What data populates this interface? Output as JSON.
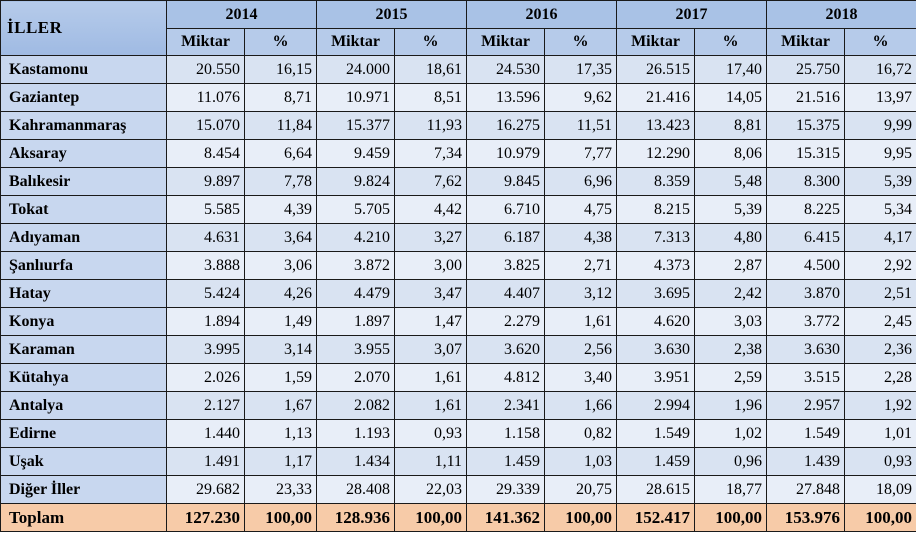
{
  "table": {
    "corner_label": "İLLER",
    "years": [
      "2014",
      "2015",
      "2016",
      "2017",
      "2018"
    ],
    "sub_headers": [
      "Miktar",
      "%"
    ],
    "rows": [
      {
        "name": "Kastamonu",
        "cells": [
          "20.550",
          "16,15",
          "24.000",
          "18,61",
          "24.530",
          "17,35",
          "26.515",
          "17,40",
          "25.750",
          "16,72"
        ]
      },
      {
        "name": "Gaziantep",
        "cells": [
          "11.076",
          "8,71",
          "10.971",
          "8,51",
          "13.596",
          "9,62",
          "21.416",
          "14,05",
          "21.516",
          "13,97"
        ]
      },
      {
        "name": "Kahramanmaraş",
        "cells": [
          "15.070",
          "11,84",
          "15.377",
          "11,93",
          "16.275",
          "11,51",
          "13.423",
          "8,81",
          "15.375",
          "9,99"
        ]
      },
      {
        "name": "Aksaray",
        "cells": [
          "8.454",
          "6,64",
          "9.459",
          "7,34",
          "10.979",
          "7,77",
          "12.290",
          "8,06",
          "15.315",
          "9,95"
        ]
      },
      {
        "name": "Balıkesir",
        "cells": [
          "9.897",
          "7,78",
          "9.824",
          "7,62",
          "9.845",
          "6,96",
          "8.359",
          "5,48",
          "8.300",
          "5,39"
        ]
      },
      {
        "name": "Tokat",
        "cells": [
          "5.585",
          "4,39",
          "5.705",
          "4,42",
          "6.710",
          "4,75",
          "8.215",
          "5,39",
          "8.225",
          "5,34"
        ]
      },
      {
        "name": "Adıyaman",
        "cells": [
          "4.631",
          "3,64",
          "4.210",
          "3,27",
          "6.187",
          "4,38",
          "7.313",
          "4,80",
          "6.415",
          "4,17"
        ]
      },
      {
        "name": "Şanlıurfa",
        "cells": [
          "3.888",
          "3,06",
          "3.872",
          "3,00",
          "3.825",
          "2,71",
          "4.373",
          "2,87",
          "4.500",
          "2,92"
        ]
      },
      {
        "name": "Hatay",
        "cells": [
          "5.424",
          "4,26",
          "4.479",
          "3,47",
          "4.407",
          "3,12",
          "3.695",
          "2,42",
          "3.870",
          "2,51"
        ]
      },
      {
        "name": "Konya",
        "cells": [
          "1.894",
          "1,49",
          "1.897",
          "1,47",
          "2.279",
          "1,61",
          "4.620",
          "3,03",
          "3.772",
          "2,45"
        ]
      },
      {
        "name": "Karaman",
        "cells": [
          "3.995",
          "3,14",
          "3.955",
          "3,07",
          "3.620",
          "2,56",
          "3.630",
          "2,38",
          "3.630",
          "2,36"
        ]
      },
      {
        "name": "Kütahya",
        "cells": [
          "2.026",
          "1,59",
          "2.070",
          "1,61",
          "4.812",
          "3,40",
          "3.951",
          "2,59",
          "3.515",
          "2,28"
        ]
      },
      {
        "name": "Antalya",
        "cells": [
          "2.127",
          "1,67",
          "2.082",
          "1,61",
          "2.341",
          "1,66",
          "2.994",
          "1,96",
          "2.957",
          "1,92"
        ]
      },
      {
        "name": "Edirne",
        "cells": [
          "1.440",
          "1,13",
          "1.193",
          "0,93",
          "1.158",
          "0,82",
          "1.549",
          "1,02",
          "1.549",
          "1,01"
        ]
      },
      {
        "name": "Uşak",
        "cells": [
          "1.491",
          "1,17",
          "1.434",
          "1,11",
          "1.459",
          "1,03",
          "1.459",
          "0,96",
          "1.439",
          "0,93"
        ]
      },
      {
        "name": "Diğer İller",
        "cells": [
          "29.682",
          "23,33",
          "28.408",
          "22,03",
          "29.339",
          "20,75",
          "28.615",
          "18,77",
          "27.848",
          "18,09"
        ]
      }
    ],
    "total": {
      "name": "Toplam",
      "cells": [
        "127.230",
        "100,00",
        "128.936",
        "100,00",
        "141.362",
        "100,00",
        "152.417",
        "100,00",
        "153.976",
        "100,00"
      ]
    }
  }
}
